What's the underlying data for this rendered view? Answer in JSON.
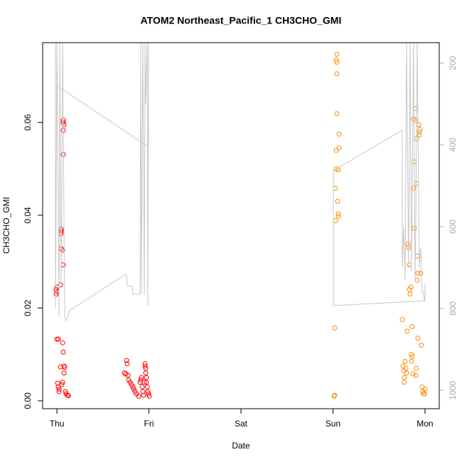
{
  "chart_data": {
    "type": "scatter",
    "title": "ATOM2 Northeast_Pacific_1 CH3CHO_GMI",
    "x_label": "Date",
    "y_label": "CH3CHO_GMI",
    "xlim": [
      -0.155,
      4.155
    ],
    "xticks": [
      {
        "value": 0,
        "label": "Thu"
      },
      {
        "value": 1,
        "label": "Fri"
      },
      {
        "value": 2,
        "label": "Sat"
      },
      {
        "value": 3,
        "label": "Sun"
      },
      {
        "value": 4,
        "label": "Mon"
      }
    ],
    "ylim": [
      -0.0017,
      0.0772
    ],
    "yticks": [
      {
        "value": 0,
        "label": "0.00"
      },
      0.02,
      0.04,
      0.06
    ],
    "y2lim": [
      1045,
      150
    ],
    "y2ticks": [
      200,
      400,
      600,
      800,
      1000
    ],
    "series": [
      {
        "color": "#ff0000",
        "marker": "circle",
        "x": [
          -0.008,
          0,
          0,
          -0.008,
          0,
          0.015,
          0.008,
          0.015,
          0.023,
          0.023,
          0.039,
          0.039,
          0.046,
          0.046,
          0.046,
          0.046,
          0.062,
          0.069,
          0.069,
          0.069,
          0.077,
          0.069,
          0.069,
          0.062,
          0.069,
          0.077,
          0.085,
          0.077,
          0.062,
          0.054,
          0.093,
          0.1,
          0.116,
          0.124,
          0.734,
          0.749,
          0.757,
          0.764,
          0.772,
          0.78,
          0.795,
          0.811,
          0.826,
          0.834,
          0.849,
          0.865,
          0.888,
          0.903,
          0.911,
          0.919,
          0.927,
          0.934,
          0.942,
          0.958,
          0.958,
          0.965,
          0.965,
          0.973,
          0.973,
          0.981,
          0.988,
          0.996,
          1.004,
          0.95
        ],
        "values": [
          0.024,
          0.0245,
          0.0235,
          0.023,
          0.0133,
          0.0133,
          0.0038,
          0.003,
          0.002,
          0.0025,
          0.0073,
          0.025,
          0.037,
          0.0365,
          0.036,
          0.0328,
          0.0325,
          0.0293,
          0.0605,
          0.06,
          0.0595,
          0.0583,
          0.0531,
          0.0125,
          0.0105,
          0.0075,
          0.0072,
          0.006,
          0.004,
          0.0035,
          0.002,
          0.0015,
          0.0012,
          0.0011,
          0.006,
          0.0058,
          0.0087,
          0.008,
          0.0055,
          0.0045,
          0.004,
          0.0035,
          0.003,
          0.0025,
          0.002,
          0.0015,
          0.001,
          0.004,
          0.0045,
          0.005,
          0.003,
          0.002,
          0.0012,
          0.008,
          0.0075,
          0.007,
          0.006,
          0.005,
          0.004,
          0.003,
          0.002,
          0.0015,
          0.001,
          0.004
        ]
      },
      {
        "color": "#ff8c00",
        "marker": "circle",
        "x": [
          3.012,
          3.019,
          3.019,
          3.027,
          3.027,
          3.035,
          3.035,
          3.042,
          3.042,
          3.042,
          3.035,
          3.042,
          3.05,
          3.058,
          3.058,
          3.066,
          3.066,
          3.058,
          3.753,
          3.761,
          3.768,
          3.776,
          3.776,
          3.784,
          3.792,
          3.799,
          3.807,
          3.815,
          3.822,
          3.83,
          3.83,
          3.838,
          3.846,
          3.853,
          3.861,
          3.861,
          3.876,
          3.876,
          3.884,
          3.884,
          3.892,
          3.9,
          3.907,
          3.907,
          3.915,
          3.915,
          3.923,
          3.923,
          3.931,
          3.938,
          3.938,
          3.946,
          3.954,
          3.961,
          3.969,
          3.977,
          3.985,
          3.992,
          4.0,
          3.9,
          3.907,
          3.853,
          3.869
        ],
        "values": [
          0.001,
          0.0012,
          0.0157,
          0.0388,
          0.0458,
          0.05,
          0.054,
          0.0619,
          0.0705,
          0.073,
          0.0735,
          0.0747,
          0.043,
          0.0403,
          0.0398,
          0.0545,
          0.0575,
          0.0498,
          0.0175,
          0.0075,
          0.0065,
          0.005,
          0.004,
          0.0085,
          0.007,
          0.006,
          0.015,
          0.0338,
          0.033,
          0.0293,
          0.024,
          0.023,
          0.0245,
          0.01,
          0.0095,
          0.016,
          0.0608,
          0.0458,
          0.0515,
          0.0372,
          0.0605,
          0.063,
          0.0565,
          0.0468,
          0.0312,
          0.026,
          0.0135,
          0.0275,
          0.0595,
          0.058,
          0.0573,
          0.0585,
          0.0275,
          0.012,
          0.003,
          0.002,
          0.0015,
          0.0015,
          0.0025,
          0.0055,
          0.007,
          0.0085,
          0.0058
        ]
      },
      {
        "type": "line",
        "axis": "y2",
        "color": "#c8c8c8",
        "x": [
          -0.008,
          0.996,
          0.996,
          null,
          -0.015,
          -0.015,
          0,
          0.023,
          0.031,
          0.046,
          0.062,
          0.085,
          0.1,
          0.124,
          0.139,
          0.734,
          0.757,
          0.764,
          0.819,
          0.826,
          0.903,
          0.911,
          0.919,
          0.934,
          0.95,
          0.958,
          0.965,
          0.981,
          0.988,
          0.996,
          null,
          3.004,
          3.004,
          3.753,
          3.753,
          3.768,
          3.784,
          3.799,
          3.822,
          3.838,
          3.853,
          3.876,
          3.892,
          3.9,
          3.915,
          3.938,
          3.954,
          3.969,
          3.985,
          3.992,
          4.0,
          null,
          3.004,
          4.0,
          4.0
        ],
        "values": [
          254,
          405,
          150,
          null,
          150,
          800,
          150,
          820,
          150,
          740,
          150,
          820,
          830,
          815,
          805,
          718,
          718,
          745,
          745,
          765,
          765,
          150,
          765,
          150,
          765,
          150,
          300,
          150,
          795,
          150,
          null,
          793,
          463,
          364,
          700,
          600,
          730,
          150,
          700,
          150,
          710,
          150,
          730,
          600,
          150,
          700,
          650,
          760,
          760,
          780,
          781,
          null,
          793,
          781,
          740
        ]
      }
    ]
  }
}
